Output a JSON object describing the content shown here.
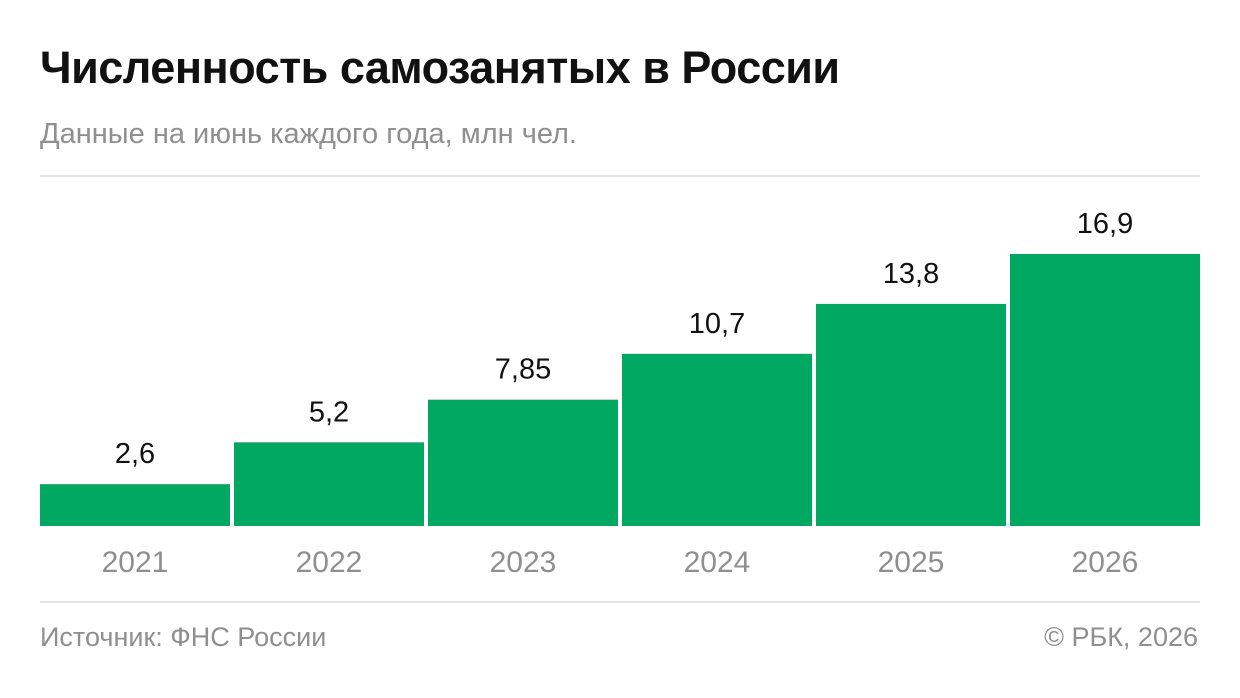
{
  "header": {
    "title": "Численность самозанятых в России",
    "subtitle": "Данные на июнь каждого года, млн чел."
  },
  "footer": {
    "source": "Источник: ФНС России",
    "copyright": "© РБК, 2026"
  },
  "colors": {
    "bar": "#00a862",
    "value_label": "#111111",
    "tick_label": "#8f8f8f"
  },
  "chart_data": {
    "type": "bar",
    "categories": [
      "2021",
      "2022",
      "2023",
      "2024",
      "2025",
      "2026"
    ],
    "values": [
      2.6,
      5.2,
      7.85,
      10.7,
      13.8,
      16.9
    ],
    "value_labels": [
      "2,6",
      "5,2",
      "7,85",
      "10,7",
      "13,8",
      "16,9"
    ],
    "title": "Численность самозанятых в России",
    "subtitle": "Данные на июнь каждого года, млн чел.",
    "xlabel": "",
    "ylabel": "",
    "ylim": [
      0,
      16.9
    ],
    "grid": false,
    "legend": "none"
  }
}
